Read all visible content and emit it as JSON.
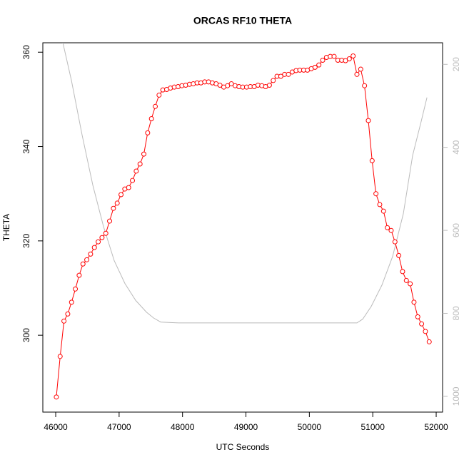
{
  "chart_data": {
    "type": "line",
    "title": "ORCAS RF10 THETA",
    "x_label": "UTC Seconds",
    "y_label": "THETA",
    "xlim": [
      45797,
      52101
    ],
    "xticks": [
      46000,
      47000,
      48000,
      49000,
      50000,
      51000,
      52000
    ],
    "ylim": [
      283.7,
      362
    ],
    "yticks": [
      300,
      320,
      340,
      360
    ],
    "y2lim": [
      1038,
      148
    ],
    "y2ticks": [
      200,
      400,
      600,
      800,
      1000
    ],
    "y2_color": "#bbbbbb",
    "series": [
      {
        "color": "red",
        "marker": "circle",
        "x": [
          46010,
          46070,
          46130,
          46190,
          46250,
          46310,
          46370,
          46430,
          46490,
          46550,
          46610,
          46670,
          46730,
          46790,
          46850,
          46910,
          46970,
          47030,
          47090,
          47150,
          47210,
          47270,
          47330,
          47390,
          47450,
          47510,
          47570,
          47630,
          47690,
          47750,
          47810,
          47870,
          47930,
          47990,
          48050,
          48110,
          48170,
          48230,
          48290,
          48350,
          48410,
          48470,
          48530,
          48590,
          48650,
          48710,
          48770,
          48830,
          48890,
          48950,
          49010,
          49070,
          49130,
          49190,
          49250,
          49310,
          49370,
          49430,
          49490,
          49550,
          49610,
          49670,
          49730,
          49790,
          49850,
          49910,
          49970,
          50030,
          50090,
          50150,
          50210,
          50270,
          50330,
          50390,
          50450,
          50510,
          50570,
          50630,
          50690,
          50750,
          50810,
          50870,
          50930,
          50990,
          51050,
          51110,
          51170,
          51230,
          51290,
          51350,
          51410,
          51470,
          51530,
          51590,
          51650,
          51710,
          51770,
          51830,
          51890
        ],
        "values": [
          286.9,
          295.5,
          303.0,
          304.5,
          307.0,
          309.8,
          312.7,
          315.1,
          316.0,
          317.2,
          318.6,
          319.8,
          320.7,
          321.6,
          324.2,
          326.9,
          328.0,
          329.8,
          331.0,
          331.3,
          332.8,
          334.8,
          336.3,
          338.4,
          342.9,
          345.9,
          348.5,
          350.9,
          352.0,
          352.1,
          352.4,
          352.6,
          352.7,
          352.9,
          353.0,
          353.2,
          353.3,
          353.5,
          353.5,
          353.7,
          353.7,
          353.5,
          353.3,
          353.0,
          352.6,
          352.9,
          353.3,
          352.9,
          352.7,
          352.6,
          352.6,
          352.7,
          352.7,
          353.0,
          352.9,
          352.7,
          353.0,
          354.0,
          354.9,
          354.9,
          355.3,
          355.3,
          355.8,
          356.1,
          356.2,
          356.2,
          356.2,
          356.5,
          356.8,
          357.3,
          358.3,
          358.9,
          359.1,
          359.1,
          358.3,
          358.3,
          358.2,
          358.6,
          359.2,
          355.3,
          356.4,
          352.9,
          345.5,
          337.0,
          330.0,
          327.7,
          326.3,
          322.8,
          322.2,
          319.8,
          316.9,
          313.5,
          311.6,
          310.9,
          307.0,
          303.9,
          302.4,
          300.8,
          298.6
        ]
      },
      {
        "color": "#bbbbbb",
        "axis": "y2",
        "x": [
          46113,
          46248,
          46417,
          46585,
          46754,
          46923,
          47092,
          47261,
          47430,
          47542,
          47655,
          47937,
          50750,
          50841,
          50976,
          51144,
          51313,
          51482,
          51629,
          51764,
          51854
        ],
        "values": [
          148,
          239,
          371,
          491,
          591,
          673,
          728,
          769,
          797,
          811,
          821,
          823,
          823,
          814,
          783,
          732,
          663,
          560,
          419,
          337,
          280
        ]
      }
    ]
  }
}
